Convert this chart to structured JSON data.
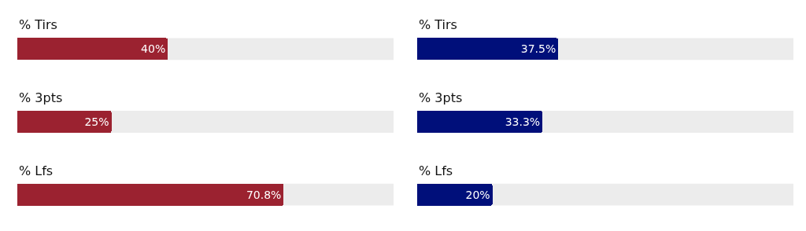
{
  "chart_data": [
    {
      "type": "bar",
      "orientation": "horizontal",
      "categories": [
        "% Tirs",
        "% 3pts",
        "% Lfs"
      ],
      "values": [
        40,
        25,
        70.8
      ],
      "value_labels": [
        "40%",
        "25%",
        "70.8%"
      ],
      "color": "#9b2230",
      "xlim": [
        0,
        100
      ],
      "tick_labels": false,
      "grid": false,
      "bands": [
        {
          "axis": "x",
          "from": 0,
          "to": 100,
          "color": "#ececec"
        }
      ]
    },
    {
      "type": "bar",
      "orientation": "horizontal",
      "categories": [
        "% Tirs",
        "% 3pts",
        "% Lfs"
      ],
      "values": [
        37.5,
        33.3,
        20
      ],
      "value_labels": [
        "37.5%",
        "33.3%",
        "20%"
      ],
      "color": "#000f7a",
      "xlim": [
        0,
        100
      ],
      "tick_labels": false,
      "grid": false,
      "bands": [
        {
          "axis": "x",
          "from": 0,
          "to": 100,
          "color": "#ececec"
        }
      ]
    }
  ]
}
